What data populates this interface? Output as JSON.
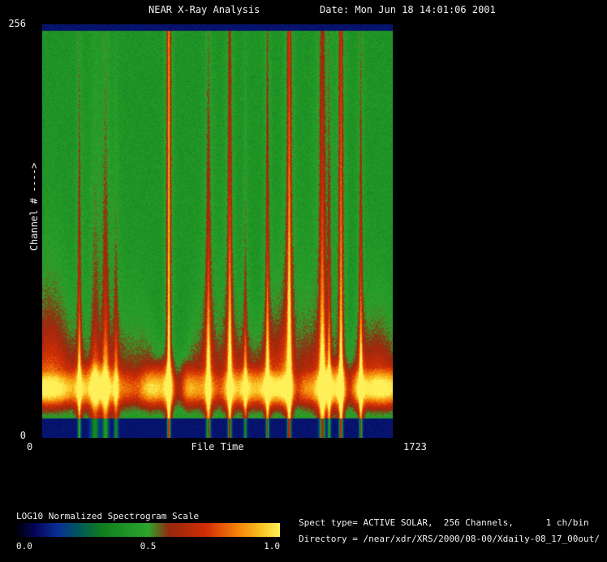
{
  "header": {
    "title": "NEAR X-Ray Analysis",
    "date_label": "Date: Mon Jun 18 14:01:06 2001"
  },
  "chart_data": {
    "type": "heatmap",
    "title": "NEAR X-Ray Analysis",
    "xlabel": "File Time",
    "ylabel": "Channel # ---->",
    "x_range": [
      0,
      1723
    ],
    "y_range": [
      0,
      256
    ],
    "x_ticks": [
      "0",
      "1723"
    ],
    "y_ticks": [
      "0",
      "256"
    ],
    "colorbar": {
      "label": "LOG10 Normalized Spectrogram Scale",
      "ticks": [
        "0.0",
        "0.5",
        "1.0"
      ]
    },
    "colormap": [
      {
        "v": 0.0,
        "c": [
          0,
          0,
          10
        ]
      },
      {
        "v": 0.07,
        "c": [
          5,
          5,
          90
        ]
      },
      {
        "v": 0.16,
        "c": [
          10,
          50,
          150
        ]
      },
      {
        "v": 0.24,
        "c": [
          0,
          90,
          90
        ]
      },
      {
        "v": 0.32,
        "c": [
          15,
          125,
          30
        ]
      },
      {
        "v": 0.5,
        "c": [
          45,
          165,
          45
        ]
      },
      {
        "v": 0.58,
        "c": [
          150,
          40,
          15
        ]
      },
      {
        "v": 0.72,
        "c": [
          210,
          45,
          5
        ]
      },
      {
        "v": 0.84,
        "c": [
          245,
          130,
          10
        ]
      },
      {
        "v": 0.93,
        "c": [
          250,
          195,
          35
        ]
      },
      {
        "v": 1.0,
        "c": [
          255,
          240,
          90
        ]
      }
    ],
    "background_level": 0.42,
    "noise": 0.09,
    "band": {
      "center_ch": 30,
      "sigma_up_ch": 11,
      "sigma_low_ch": 8,
      "base_peak": 0.5,
      "shoulder_tail_ch": 22
    },
    "strips": {
      "bottom_ch": 12,
      "top_ch": 4,
      "level": 0.1
    },
    "events": [
      {
        "t": 181,
        "a": 0.26,
        "w": 5,
        "reach": 150
      },
      {
        "t": 258,
        "a": 0.17,
        "w": 14,
        "reach": 100
      },
      {
        "t": 310,
        "a": 0.22,
        "w": 10,
        "reach": 140
      },
      {
        "t": 362,
        "a": 0.17,
        "w": 7,
        "reach": 90
      },
      {
        "t": 622,
        "a": 0.42,
        "w": 5,
        "reach": 700
      },
      {
        "t": 817,
        "a": 0.3,
        "w": 7,
        "reach": 150
      },
      {
        "t": 922,
        "a": 0.33,
        "w": 6,
        "reach": 240
      },
      {
        "t": 999,
        "a": 0.19,
        "w": 5,
        "reach": 100
      },
      {
        "t": 1108,
        "a": 0.3,
        "w": 5,
        "reach": 190
      },
      {
        "t": 1215,
        "a": 0.38,
        "w": 6,
        "reach": 380
      },
      {
        "t": 1378,
        "a": 0.34,
        "w": 9,
        "reach": 240
      },
      {
        "t": 1412,
        "a": 0.24,
        "w": 5,
        "reach": 130
      },
      {
        "t": 1470,
        "a": 0.38,
        "w": 6,
        "reach": 350
      },
      {
        "t": 1568,
        "a": 0.3,
        "w": 5,
        "reach": 160
      }
    ],
    "band_dips": [
      {
        "t": 470,
        "d": 0.15,
        "w": 30
      },
      {
        "t": 668,
        "d": 0.3,
        "w": 22
      },
      {
        "t": 1245,
        "d": 0.26,
        "w": 25
      },
      {
        "t": 1505,
        "d": 0.2,
        "w": 18
      }
    ]
  },
  "annotations": {
    "line1": "Spect type= ACTIVE SOLAR,  256 Channels,      1 ch/bin",
    "line2": "Directory = /near/xdr/XRS/2000/08-00/Xdaily-08_17_00out/"
  }
}
